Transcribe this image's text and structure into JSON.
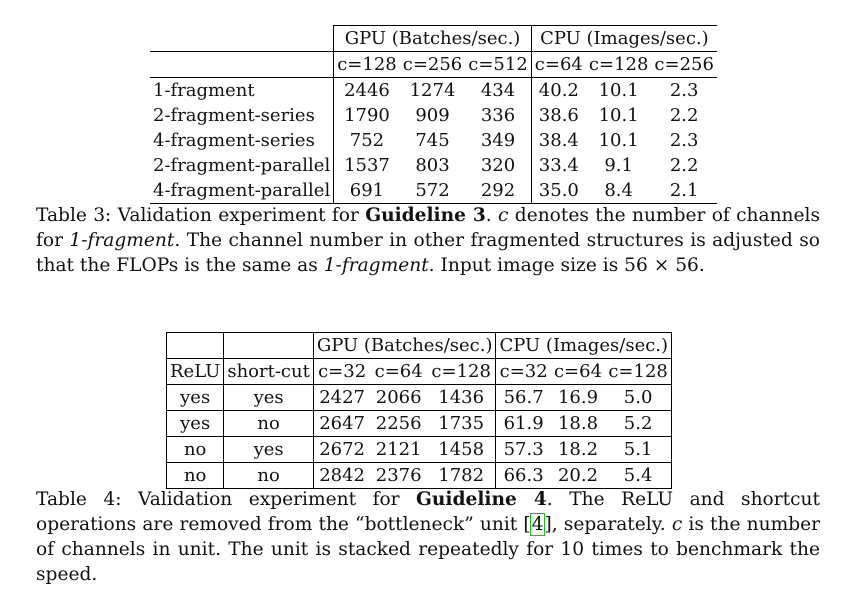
{
  "table3": {
    "group_headers": [
      "GPU (Batches/sec.)",
      "CPU (Images/sec.)"
    ],
    "sub_headers": [
      "c=128",
      "c=256",
      "c=512",
      "c=64",
      "c=128",
      "c=256"
    ],
    "rows": [
      {
        "label": "1-fragment",
        "values": [
          "2446",
          "1274",
          "434",
          "40.2",
          "10.1",
          "2.3"
        ]
      },
      {
        "label": "2-fragment-series",
        "values": [
          "1790",
          "909",
          "336",
          "38.6",
          "10.1",
          "2.2"
        ]
      },
      {
        "label": "4-fragment-series",
        "values": [
          "752",
          "745",
          "349",
          "38.4",
          "10.1",
          "2.3"
        ]
      },
      {
        "label": "2-fragment-parallel",
        "values": [
          "1537",
          "803",
          "320",
          "33.4",
          "9.1",
          "2.2"
        ]
      },
      {
        "label": "4-fragment-parallel",
        "values": [
          "691",
          "572",
          "292",
          "35.0",
          "8.4",
          "2.1"
        ]
      }
    ]
  },
  "caption3": {
    "prefix": "Table 3: Validation experiment for ",
    "bold": "Guideline 3",
    "p1": ". ",
    "c": "c",
    "p2": " denotes the number of channels for ",
    "i1": "1-fragment",
    "p3": ". The channel number in other fragmented structures is adjusted so that the FLOPs is the same as ",
    "i2": "1-fragment",
    "p4": ". Input image size is 56 × 56."
  },
  "table4": {
    "col_headers": [
      "ReLU",
      "short-cut"
    ],
    "group_headers": [
      "GPU (Batches/sec.)",
      "CPU (Images/sec.)"
    ],
    "sub_headers": [
      "c=32",
      "c=64",
      "c=128",
      "c=32",
      "c=64",
      "c=128"
    ],
    "rows": [
      {
        "relu": "yes",
        "shortcut": "yes",
        "values": [
          "2427",
          "2066",
          "1436",
          "56.7",
          "16.9",
          "5.0"
        ]
      },
      {
        "relu": "yes",
        "shortcut": "no",
        "values": [
          "2647",
          "2256",
          "1735",
          "61.9",
          "18.8",
          "5.2"
        ]
      },
      {
        "relu": "no",
        "shortcut": "yes",
        "values": [
          "2672",
          "2121",
          "1458",
          "57.3",
          "18.2",
          "5.1"
        ]
      },
      {
        "relu": "no",
        "shortcut": "no",
        "values": [
          "2842",
          "2376",
          "1782",
          "66.3",
          "20.2",
          "5.4"
        ]
      }
    ]
  },
  "caption4": {
    "prefix": "Table 4: Validation experiment for ",
    "bold": "Guideline 4",
    "p1": ". The ReLU and shortcut operations are removed from the “bottleneck” unit ",
    "ref": "4",
    "p2": ", separately. ",
    "c": "c",
    "p3": " is the number of channels in unit. The unit is stacked repeatedly for 10 times to benchmark the speed."
  }
}
